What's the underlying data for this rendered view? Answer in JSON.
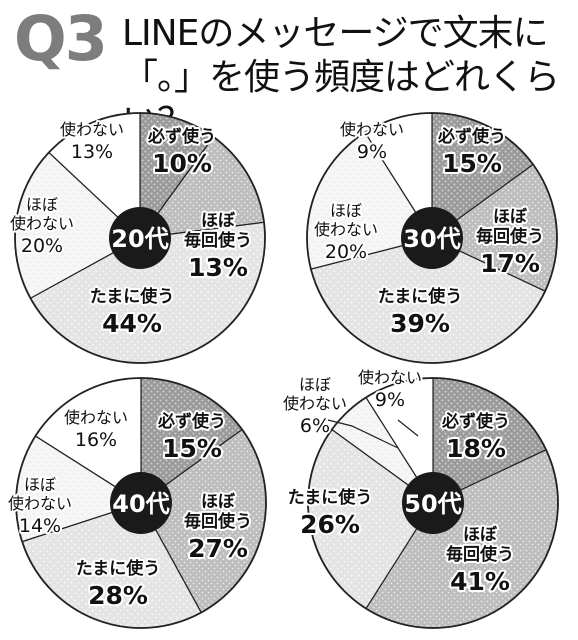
{
  "header": {
    "question_number": "Q3",
    "title": "LINEのメッセージで文末に\n「。」を使う頻度はどれくらい？"
  },
  "chart_data": [
    {
      "type": "pie",
      "center_label": "20代",
      "slices": [
        {
          "label": "必ず使う",
          "value": 10,
          "value_text": "10%"
        },
        {
          "label": "ほぼ\n毎回使う",
          "value": 13,
          "value_text": "13%"
        },
        {
          "label": "たまに使う",
          "value": 44,
          "value_text": "44%"
        },
        {
          "label": "ほぼ\n使わない",
          "value": 20,
          "value_text": "20%"
        },
        {
          "label": "使わない",
          "value": 13,
          "value_text": "13%"
        }
      ]
    },
    {
      "type": "pie",
      "center_label": "30代",
      "slices": [
        {
          "label": "必ず使う",
          "value": 15,
          "value_text": "15%"
        },
        {
          "label": "ほぼ\n毎回使う",
          "value": 17,
          "value_text": "17%"
        },
        {
          "label": "たまに使う",
          "value": 39,
          "value_text": "39%"
        },
        {
          "label": "ほぼ\n使わない",
          "value": 20,
          "value_text": "20%"
        },
        {
          "label": "使わない",
          "value": 9,
          "value_text": "9%"
        }
      ]
    },
    {
      "type": "pie",
      "center_label": "40代",
      "slices": [
        {
          "label": "必ず使う",
          "value": 15,
          "value_text": "15%"
        },
        {
          "label": "ほぼ\n毎回使う",
          "value": 27,
          "value_text": "27%"
        },
        {
          "label": "たまに使う",
          "value": 28,
          "value_text": "28%"
        },
        {
          "label": "ほぼ\n使わない",
          "value": 14,
          "value_text": "14%"
        },
        {
          "label": "使わない",
          "value": 16,
          "value_text": "16%"
        }
      ]
    },
    {
      "type": "pie",
      "center_label": "50代",
      "slices": [
        {
          "label": "必ず使う",
          "value": 18,
          "value_text": "18%"
        },
        {
          "label": "ほぼ\n毎回使う",
          "value": 41,
          "value_text": "41%"
        },
        {
          "label": "たまに使う",
          "value": 26,
          "value_text": "26%"
        },
        {
          "label": "ほぼ\n使わない",
          "value": 6,
          "value_text": "6%"
        },
        {
          "label": "使わない",
          "value": 9,
          "value_text": "9%"
        }
      ]
    }
  ]
}
